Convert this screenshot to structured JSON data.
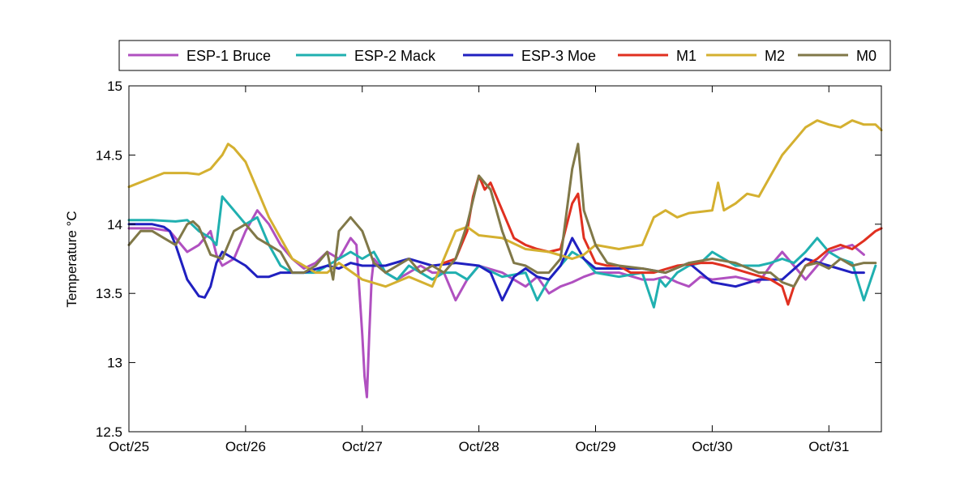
{
  "chart_data": {
    "type": "line",
    "ylabel": "Temperature °C",
    "xlabel": "",
    "title": "",
    "ylim": [
      12.5,
      15
    ],
    "xlim": [
      0,
      6.45
    ],
    "yticks": [
      "12.5",
      "13",
      "13.5",
      "14",
      "14.5",
      "15"
    ],
    "xticks": [
      {
        "x": 0,
        "label": "Oct/25"
      },
      {
        "x": 1,
        "label": "Oct/26"
      },
      {
        "x": 2,
        "label": "Oct/27"
      },
      {
        "x": 3,
        "label": "Oct/28"
      },
      {
        "x": 4,
        "label": "Oct/29"
      },
      {
        "x": 5,
        "label": "Oct/30"
      },
      {
        "x": 6,
        "label": "Oct/31"
      }
    ],
    "legend_position": "top",
    "series": [
      {
        "name": "ESP-1 Bruce",
        "color": "#b050c0",
        "x": [
          0,
          0.2,
          0.35,
          0.5,
          0.6,
          0.7,
          0.75,
          0.8,
          0.9,
          1.0,
          1.1,
          1.2,
          1.3,
          1.4,
          1.5,
          1.6,
          1.7,
          1.8,
          1.9,
          1.95,
          2.0,
          2.02,
          2.04,
          2.06,
          2.08,
          2.1,
          2.2,
          2.3,
          2.5,
          2.6,
          2.7,
          2.8,
          2.9,
          3.0,
          3.2,
          3.4,
          3.5,
          3.6,
          3.7,
          3.8,
          3.9,
          4.0,
          4.2,
          4.4,
          4.5,
          4.6,
          4.7,
          4.8,
          4.9,
          5.0,
          5.2,
          5.4,
          5.5,
          5.6,
          5.7,
          5.8,
          6.0,
          6.2,
          6.3
        ],
        "y": [
          13.97,
          13.97,
          13.95,
          13.8,
          13.85,
          13.95,
          13.78,
          13.7,
          13.75,
          13.95,
          14.1,
          14.0,
          13.85,
          13.75,
          13.68,
          13.72,
          13.8,
          13.75,
          13.9,
          13.85,
          13.2,
          12.9,
          12.75,
          13.2,
          13.6,
          13.75,
          13.65,
          13.6,
          13.7,
          13.65,
          13.65,
          13.45,
          13.6,
          13.7,
          13.65,
          13.55,
          13.62,
          13.5,
          13.55,
          13.58,
          13.62,
          13.65,
          13.65,
          13.6,
          13.6,
          13.62,
          13.58,
          13.55,
          13.62,
          13.6,
          13.62,
          13.58,
          13.7,
          13.8,
          13.7,
          13.6,
          13.8,
          13.85,
          13.78
        ]
      },
      {
        "name": "ESP-2 Mack",
        "color": "#20b0b0",
        "x": [
          0,
          0.2,
          0.4,
          0.5,
          0.6,
          0.7,
          0.75,
          0.8,
          0.9,
          1.0,
          1.1,
          1.2,
          1.3,
          1.4,
          1.5,
          1.6,
          1.7,
          1.8,
          1.9,
          2.0,
          2.1,
          2.2,
          2.3,
          2.4,
          2.5,
          2.6,
          2.7,
          2.8,
          2.9,
          3.0,
          3.2,
          3.4,
          3.5,
          3.6,
          3.7,
          3.8,
          3.9,
          4.0,
          4.2,
          4.4,
          4.5,
          4.55,
          4.6,
          4.7,
          4.8,
          4.9,
          5.0,
          5.2,
          5.4,
          5.5,
          5.6,
          5.7,
          5.8,
          5.9,
          6.0,
          6.1,
          6.2,
          6.3,
          6.4
        ],
        "y": [
          14.03,
          14.03,
          14.02,
          14.03,
          13.95,
          13.9,
          13.85,
          14.2,
          14.1,
          14.0,
          14.05,
          13.85,
          13.7,
          13.65,
          13.65,
          13.65,
          13.7,
          13.75,
          13.8,
          13.75,
          13.8,
          13.65,
          13.6,
          13.7,
          13.65,
          13.6,
          13.65,
          13.65,
          13.6,
          13.7,
          13.62,
          13.65,
          13.45,
          13.6,
          13.7,
          13.8,
          13.75,
          13.65,
          13.62,
          13.65,
          13.4,
          13.6,
          13.55,
          13.65,
          13.7,
          13.72,
          13.8,
          13.7,
          13.7,
          13.72,
          13.75,
          13.72,
          13.8,
          13.9,
          13.8,
          13.75,
          13.72,
          13.45,
          13.7
        ]
      },
      {
        "name": "ESP-3 Moe",
        "color": "#2020c0",
        "x": [
          0,
          0.2,
          0.3,
          0.35,
          0.4,
          0.5,
          0.6,
          0.65,
          0.7,
          0.75,
          0.8,
          0.9,
          1.0,
          1.1,
          1.2,
          1.3,
          1.5,
          1.7,
          1.8,
          1.9,
          2.0,
          2.2,
          2.4,
          2.6,
          2.8,
          3.0,
          3.1,
          3.2,
          3.3,
          3.4,
          3.5,
          3.6,
          3.7,
          3.8,
          3.9,
          4.0,
          4.2,
          4.4,
          4.6,
          4.8,
          5.0,
          5.2,
          5.4,
          5.6,
          5.8,
          6.0,
          6.2,
          6.3
        ],
        "y": [
          14.0,
          14.0,
          13.98,
          13.95,
          13.85,
          13.6,
          13.48,
          13.47,
          13.55,
          13.72,
          13.8,
          13.75,
          13.7,
          13.62,
          13.62,
          13.65,
          13.65,
          13.7,
          13.68,
          13.72,
          13.7,
          13.7,
          13.75,
          13.7,
          13.72,
          13.7,
          13.65,
          13.45,
          13.62,
          13.68,
          13.62,
          13.6,
          13.7,
          13.9,
          13.75,
          13.68,
          13.68,
          13.68,
          13.65,
          13.72,
          13.58,
          13.55,
          13.6,
          13.6,
          13.75,
          13.7,
          13.65,
          13.65
        ]
      },
      {
        "name": "M1",
        "color": "#e03020",
        "x": [
          2.7,
          2.8,
          2.9,
          2.95,
          3.0,
          3.05,
          3.1,
          3.2,
          3.3,
          3.4,
          3.5,
          3.6,
          3.7,
          3.8,
          3.85,
          3.9,
          4.0,
          4.1,
          4.2,
          4.3,
          4.5,
          4.7,
          4.9,
          5.0,
          5.1,
          5.3,
          5.5,
          5.6,
          5.65,
          5.7,
          5.8,
          5.9,
          6.0,
          6.1,
          6.2,
          6.3,
          6.4,
          6.45
        ],
        "y": [
          13.72,
          13.75,
          13.95,
          14.2,
          14.35,
          14.25,
          14.3,
          14.1,
          13.9,
          13.85,
          13.82,
          13.8,
          13.82,
          14.15,
          14.22,
          13.9,
          13.72,
          13.7,
          13.7,
          13.65,
          13.65,
          13.7,
          13.72,
          13.72,
          13.7,
          13.65,
          13.6,
          13.55,
          13.42,
          13.55,
          13.7,
          13.75,
          13.82,
          13.85,
          13.82,
          13.88,
          13.95,
          13.97
        ]
      },
      {
        "name": "M2",
        "color": "#d4b030",
        "x": [
          0,
          0.15,
          0.3,
          0.5,
          0.6,
          0.7,
          0.8,
          0.85,
          0.9,
          1.0,
          1.1,
          1.2,
          1.3,
          1.4,
          1.5,
          1.6,
          1.7,
          1.8,
          2.0,
          2.2,
          2.4,
          2.6,
          2.7,
          2.8,
          2.9,
          3.0,
          3.2,
          3.4,
          3.6,
          3.8,
          3.9,
          4.0,
          4.2,
          4.4,
          4.5,
          4.6,
          4.7,
          4.8,
          5.0,
          5.05,
          5.1,
          5.2,
          5.3,
          5.4,
          5.5,
          5.6,
          5.7,
          5.8,
          5.9,
          6.0,
          6.1,
          6.2,
          6.3,
          6.4,
          6.45
        ],
        "y": [
          14.27,
          14.32,
          14.37,
          14.37,
          14.36,
          14.4,
          14.5,
          14.58,
          14.55,
          14.45,
          14.25,
          14.05,
          13.9,
          13.75,
          13.7,
          13.65,
          13.65,
          13.72,
          13.6,
          13.55,
          13.62,
          13.55,
          13.75,
          13.95,
          13.98,
          13.92,
          13.9,
          13.82,
          13.8,
          13.75,
          13.78,
          13.85,
          13.82,
          13.85,
          14.05,
          14.1,
          14.05,
          14.08,
          14.1,
          14.3,
          14.1,
          14.15,
          14.22,
          14.2,
          14.35,
          14.5,
          14.6,
          14.7,
          14.75,
          14.72,
          14.7,
          14.75,
          14.72,
          14.72,
          14.68
        ]
      },
      {
        "name": "M0",
        "color": "#807848",
        "x": [
          0,
          0.1,
          0.2,
          0.3,
          0.4,
          0.5,
          0.55,
          0.6,
          0.7,
          0.8,
          0.9,
          1.0,
          1.1,
          1.2,
          1.3,
          1.4,
          1.5,
          1.6,
          1.7,
          1.75,
          1.8,
          1.9,
          2.0,
          2.1,
          2.2,
          2.3,
          2.4,
          2.5,
          2.6,
          2.7,
          2.8,
          2.9,
          3.0,
          3.1,
          3.2,
          3.3,
          3.4,
          3.5,
          3.6,
          3.7,
          3.8,
          3.85,
          3.9,
          4.0,
          4.1,
          4.2,
          4.4,
          4.6,
          4.8,
          5.0,
          5.2,
          5.4,
          5.5,
          5.6,
          5.7,
          5.8,
          5.9,
          6.0,
          6.1,
          6.2,
          6.3,
          6.4
        ],
        "y": [
          13.85,
          13.95,
          13.95,
          13.9,
          13.85,
          14.0,
          14.02,
          13.98,
          13.78,
          13.75,
          13.95,
          14.0,
          13.9,
          13.85,
          13.8,
          13.65,
          13.65,
          13.7,
          13.8,
          13.6,
          13.95,
          14.05,
          13.95,
          13.72,
          13.65,
          13.7,
          13.75,
          13.65,
          13.7,
          13.65,
          13.75,
          14.0,
          14.35,
          14.25,
          13.95,
          13.72,
          13.7,
          13.65,
          13.65,
          13.75,
          14.4,
          14.58,
          14.1,
          13.85,
          13.72,
          13.7,
          13.68,
          13.65,
          13.72,
          13.75,
          13.72,
          13.65,
          13.65,
          13.58,
          13.55,
          13.7,
          13.72,
          13.68,
          13.75,
          13.7,
          13.72,
          13.72
        ]
      }
    ]
  }
}
